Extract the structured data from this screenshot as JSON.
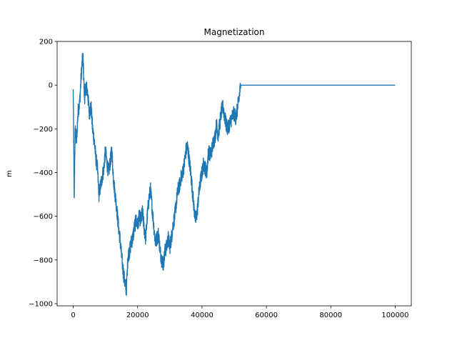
{
  "chart_data": {
    "type": "line",
    "title": "Magnetization",
    "xlabel": "",
    "ylabel": "m",
    "xlim": [
      -5000,
      105000
    ],
    "ylim": [
      -1010,
      200
    ],
    "xticks": [
      0,
      20000,
      40000,
      60000,
      80000,
      100000
    ],
    "xtick_labels": [
      "0",
      "20000",
      "40000",
      "60000",
      "80000",
      "100000"
    ],
    "yticks": [
      200,
      0,
      -200,
      -400,
      -600,
      -800,
      -1000
    ],
    "ytick_labels": [
      "200",
      "0",
      "−200",
      "−400",
      "−600",
      "−800",
      "−1000"
    ],
    "grid": false,
    "legend": null,
    "series": [
      {
        "color": "#1f77b4",
        "x": [
          0,
          300,
          600,
          1000,
          1500,
          2000,
          2500,
          3000,
          3500,
          4000,
          4500,
          5000,
          5500,
          6000,
          6500,
          7000,
          7500,
          8000,
          8500,
          9000,
          9500,
          10000,
          10500,
          11000,
          11500,
          12000,
          12500,
          13000,
          13500,
          14000,
          14500,
          15000,
          15500,
          16000,
          16500,
          17000,
          17500,
          18000,
          18500,
          19000,
          19500,
          20000,
          20500,
          21000,
          21500,
          22000,
          22500,
          23000,
          23500,
          24000,
          24500,
          25000,
          25500,
          26000,
          26500,
          27000,
          27500,
          28000,
          28500,
          29000,
          29500,
          30000,
          30500,
          31000,
          31500,
          32000,
          32500,
          33000,
          33500,
          34000,
          34500,
          35000,
          35500,
          36000,
          36500,
          37000,
          37500,
          38000,
          38500,
          39000,
          39500,
          40000,
          40500,
          41000,
          41500,
          42000,
          42500,
          43000,
          43500,
          44000,
          44500,
          45000,
          45500,
          46000,
          46500,
          47000,
          47500,
          48000,
          48500,
          49000,
          49500,
          50000,
          50500,
          51000,
          51500,
          52000,
          100000
        ],
        "y": [
          -30,
          -520,
          -200,
          -260,
          -120,
          -80,
          50,
          140,
          -60,
          0,
          -40,
          -130,
          -90,
          -200,
          -250,
          -330,
          -380,
          -500,
          -460,
          -420,
          -380,
          -300,
          -360,
          -400,
          -350,
          -300,
          -430,
          -500,
          -560,
          -640,
          -700,
          -780,
          -850,
          -900,
          -940,
          -780,
          -760,
          -720,
          -700,
          -650,
          -620,
          -640,
          -600,
          -620,
          -580,
          -650,
          -700,
          -600,
          -520,
          -480,
          -560,
          -640,
          -720,
          -700,
          -680,
          -760,
          -800,
          -820,
          -760,
          -740,
          -700,
          -740,
          -700,
          -640,
          -600,
          -540,
          -480,
          -460,
          -420,
          -400,
          -360,
          -300,
          -280,
          -340,
          -400,
          -480,
          -560,
          -620,
          -580,
          -500,
          -440,
          -400,
          -360,
          -380,
          -400,
          -300,
          -320,
          -300,
          -260,
          -240,
          -180,
          -230,
          -180,
          -120,
          -100,
          -140,
          -180,
          -200,
          -180,
          -160,
          -140,
          -130,
          -150,
          -110,
          -60,
          0,
          0
        ]
      }
    ]
  }
}
